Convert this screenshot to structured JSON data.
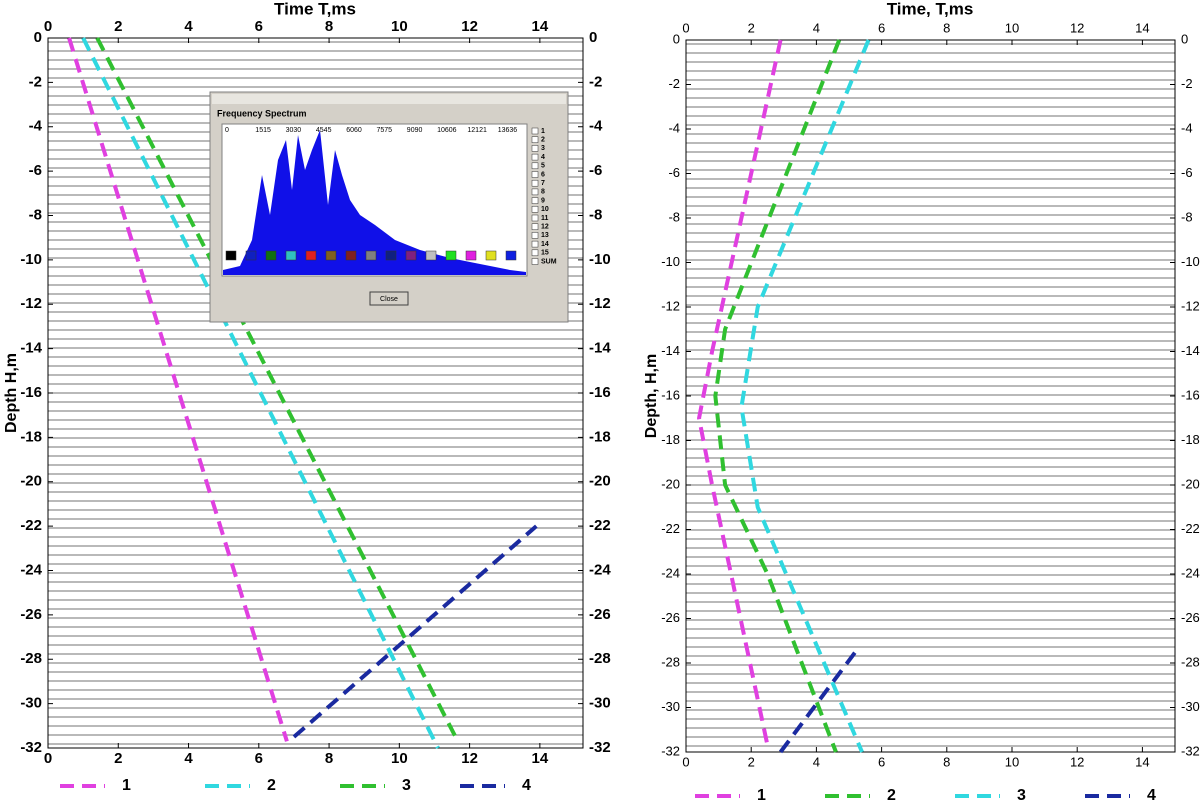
{
  "chart_data": [
    {
      "type": "line",
      "x_label": "Time T,ms",
      "y_label": "Depth H,m",
      "xlim": [
        0,
        15
      ],
      "xticks": [
        0,
        2,
        4,
        6,
        8,
        10,
        12,
        14
      ],
      "ylim": [
        -32,
        0
      ],
      "yticks": [
        0,
        -2,
        -4,
        -6,
        -8,
        -10,
        -12,
        -14,
        -16,
        -18,
        -20,
        -22,
        -24,
        -26,
        -28,
        -30,
        -32
      ],
      "series": [
        {
          "name": "1",
          "color": "#e040e0",
          "x": [
            0.6,
            6.8
          ],
          "values": [
            0,
            -31.7
          ]
        },
        {
          "name": "2",
          "color": "#30d8e0",
          "x": [
            1.0,
            11.1
          ],
          "values": [
            0,
            -32
          ]
        },
        {
          "name": "3",
          "color": "#30c030",
          "x": [
            1.4,
            11.6
          ],
          "values": [
            0,
            -31.5
          ]
        },
        {
          "name": "4",
          "color": "#1a2aa0",
          "x": [
            7.0,
            13.9
          ],
          "values": [
            -31.5,
            -22
          ]
        }
      ],
      "inset": {
        "title": "Frequency Spectrum",
        "xticks": [
          0,
          1515,
          3030,
          4545,
          6060,
          7575,
          9090,
          10606,
          12121,
          13636
        ],
        "checkboxes": [
          "1",
          "2",
          "3",
          "4",
          "5",
          "6",
          "7",
          "8",
          "9",
          "10",
          "11",
          "12",
          "13",
          "14",
          "15",
          "SUM"
        ],
        "button": "Close"
      }
    },
    {
      "type": "line",
      "x_label": "Time, T,ms",
      "y_label": "Depth, H,m",
      "xlim": [
        0,
        15
      ],
      "xticks": [
        0,
        2,
        4,
        6,
        8,
        10,
        12,
        14
      ],
      "ylim": [
        -32,
        0
      ],
      "yticks": [
        0,
        -2,
        -4,
        -6,
        -8,
        -10,
        -12,
        -14,
        -16,
        -18,
        -20,
        -22,
        -24,
        -26,
        -28,
        -30,
        -32
      ],
      "series": [
        {
          "name": "1",
          "color": "#e040e0",
          "x": [
            2.9,
            0.8,
            0.4,
            0.8,
            2.5
          ],
          "values": [
            0,
            -14,
            -17,
            -20,
            -31.7
          ]
        },
        {
          "name": "2",
          "color": "#30c030",
          "x": [
            4.7,
            1.2,
            0.9,
            1.2,
            2.5,
            4.6
          ],
          "values": [
            0,
            -13,
            -16,
            -20,
            -24,
            -32
          ]
        },
        {
          "name": "3",
          "color": "#30d8e0",
          "x": [
            5.6,
            2.2,
            1.7,
            2.2,
            5.4
          ],
          "values": [
            0,
            -12,
            -16.5,
            -21,
            -32
          ]
        },
        {
          "name": "4",
          "color": "#1a2aa0",
          "x": [
            2.9,
            5.3
          ],
          "values": [
            -32,
            -27.3
          ]
        }
      ]
    }
  ]
}
